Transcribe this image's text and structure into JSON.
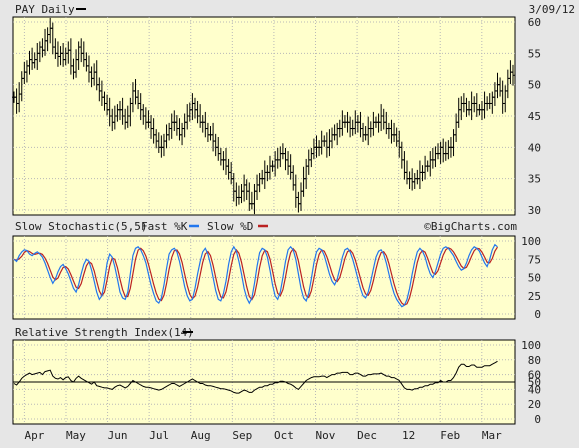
{
  "header": {
    "symbol_label": "PAY Daily",
    "date_label": "3/09/12",
    "watermark": "©BigCharts.com"
  },
  "colors": {
    "panel_bg": "#ffffcc",
    "frame_bg": "#e6e6e6",
    "price_bars": "#000000",
    "fast_k": "#2277ee",
    "slow_d": "#bb2222",
    "rsi_line": "#000000"
  },
  "chart_data": [
    {
      "type": "ohlc",
      "title": "PAY Daily",
      "ylim": [
        30,
        60
      ],
      "yticks": [
        "30",
        "35",
        "40",
        "45",
        "50",
        "55",
        "60"
      ],
      "x_months": [
        "Apr",
        "May",
        "Jun",
        "Jul",
        "Aug",
        "Sep",
        "Oct",
        "Nov",
        "Dec",
        "12",
        "Feb",
        "Mar"
      ],
      "closes": [
        48,
        47,
        48.5,
        51,
        52,
        53,
        54,
        53.5,
        54,
        55,
        56,
        55.5,
        57,
        58,
        59,
        56,
        55,
        54.5,
        55,
        54,
        55,
        55.5,
        53,
        52,
        54,
        56,
        55,
        54,
        53,
        52,
        51,
        52,
        50,
        49,
        48,
        47,
        46,
        45,
        44,
        45,
        46,
        46,
        45,
        44,
        45,
        47,
        49,
        48,
        47,
        46,
        45,
        44,
        44,
        43,
        42,
        41,
        40,
        40,
        41,
        42,
        43,
        44,
        44,
        43,
        42,
        43,
        44,
        45,
        46,
        47,
        46,
        45,
        44,
        44,
        43,
        42,
        42,
        41,
        40,
        39,
        38,
        38,
        37,
        36,
        35,
        33,
        32,
        32,
        33,
        34,
        33,
        31,
        31,
        33,
        34,
        35,
        35,
        36,
        36,
        37,
        37,
        38,
        38,
        39,
        39,
        38,
        37,
        36,
        34,
        32,
        31,
        33,
        35,
        37,
        38,
        39,
        40,
        40,
        40,
        41,
        41,
        40,
        41,
        42,
        42,
        43,
        43,
        44,
        44,
        44,
        43,
        43,
        44,
        44,
        43,
        42,
        42,
        43,
        43,
        44,
        44,
        44,
        45,
        44,
        43,
        43,
        42,
        42,
        41,
        40,
        38,
        36,
        35,
        35,
        34.5,
        35,
        35,
        36,
        36,
        37,
        37,
        38,
        38,
        39,
        39,
        40,
        39,
        39,
        40,
        40,
        42,
        44,
        46,
        47,
        47,
        46,
        46,
        47,
        47,
        46,
        46,
        46,
        47,
        47,
        47,
        48,
        49,
        50,
        49,
        47,
        49,
        51,
        52,
        51.5
      ]
    },
    {
      "type": "line",
      "title": "Slow Stochastic(5,5)",
      "ylim": [
        0,
        100
      ],
      "yticks": [
        "0",
        "25",
        "50",
        "75",
        "100"
      ],
      "series": [
        {
          "name": "Fast %K",
          "color": "#2277ee"
        },
        {
          "name": "Slow %D",
          "color": "#bb2222"
        }
      ],
      "fast_label": "Fast %K",
      "slow_label": "Slow %D",
      "k_values": [
        75,
        72,
        80,
        85,
        88,
        87,
        82,
        80,
        83,
        85,
        82,
        78,
        70,
        60,
        50,
        42,
        48,
        58,
        65,
        68,
        62,
        55,
        45,
        35,
        30,
        40,
        55,
        68,
        75,
        72,
        60,
        45,
        30,
        20,
        25,
        45,
        70,
        82,
        78,
        65,
        48,
        30,
        22,
        20,
        30,
        55,
        80,
        90,
        92,
        88,
        80,
        70,
        55,
        40,
        28,
        18,
        15,
        22,
        40,
        62,
        82,
        88,
        90,
        85,
        72,
        55,
        38,
        25,
        18,
        20,
        35,
        55,
        72,
        85,
        90,
        82,
        68,
        50,
        32,
        20,
        18,
        28,
        45,
        68,
        85,
        92,
        86,
        72,
        55,
        35,
        22,
        15,
        22,
        42,
        65,
        84,
        90,
        88,
        78,
        60,
        40,
        25,
        20,
        30,
        50,
        72,
        88,
        92,
        88,
        75,
        55,
        35,
        22,
        18,
        28,
        48,
        70,
        85,
        90,
        88,
        80,
        68,
        55,
        45,
        40,
        48,
        62,
        78,
        88,
        90,
        85,
        75,
        62,
        48,
        35,
        25,
        22,
        30,
        45,
        62,
        78,
        86,
        88,
        82,
        70,
        55,
        40,
        28,
        20,
        15,
        10,
        12,
        20,
        35,
        55,
        72,
        85,
        90,
        86,
        78,
        65,
        55,
        50,
        58,
        70,
        82,
        90,
        92,
        90,
        85,
        80,
        72,
        65,
        60,
        62,
        70,
        80,
        88,
        92,
        90,
        86,
        78,
        70,
        65,
        75,
        88,
        95,
        92
      ]
    },
    {
      "type": "line",
      "title": "Relative Strength Index(14)",
      "ylim": [
        0,
        100
      ],
      "yticks": [
        "0",
        "20",
        "40",
        "50",
        "60",
        "80",
        "100"
      ],
      "midline": 50,
      "values": [
        48,
        46,
        50,
        55,
        58,
        60,
        62,
        60,
        61,
        62,
        63,
        60,
        64,
        65,
        66,
        58,
        55,
        54,
        56,
        53,
        56,
        57,
        52,
        50,
        55,
        58,
        55,
        53,
        51,
        49,
        47,
        50,
        45,
        44,
        43,
        42,
        42,
        41,
        40,
        43,
        45,
        46,
        44,
        42,
        44,
        48,
        52,
        50,
        48,
        46,
        44,
        43,
        43,
        42,
        41,
        40,
        39,
        40,
        42,
        44,
        46,
        48,
        48,
        46,
        44,
        46,
        48,
        50,
        52,
        54,
        52,
        50,
        48,
        48,
        46,
        45,
        45,
        44,
        43,
        42,
        41,
        41,
        40,
        39,
        38,
        36,
        35,
        35,
        37,
        39,
        38,
        36,
        36,
        39,
        41,
        43,
        43,
        45,
        45,
        47,
        47,
        49,
        49,
        51,
        51,
        50,
        48,
        47,
        45,
        42,
        40,
        44,
        48,
        52,
        54,
        56,
        57,
        57,
        57,
        58,
        58,
        56,
        58,
        60,
        60,
        62,
        62,
        63,
        63,
        63,
        60,
        60,
        62,
        62,
        60,
        58,
        58,
        60,
        60,
        61,
        61,
        61,
        62,
        60,
        58,
        58,
        56,
        56,
        54,
        52,
        47,
        42,
        40,
        40,
        39,
        41,
        41,
        43,
        43,
        45,
        45,
        47,
        47,
        49,
        49,
        52,
        50,
        50,
        52,
        52,
        56,
        62,
        70,
        74,
        74,
        71,
        71,
        73,
        73,
        70,
        70,
        70,
        72,
        72,
        72,
        74,
        76,
        78,
        74,
        62,
        68,
        72,
        74,
        73
      ]
    }
  ]
}
